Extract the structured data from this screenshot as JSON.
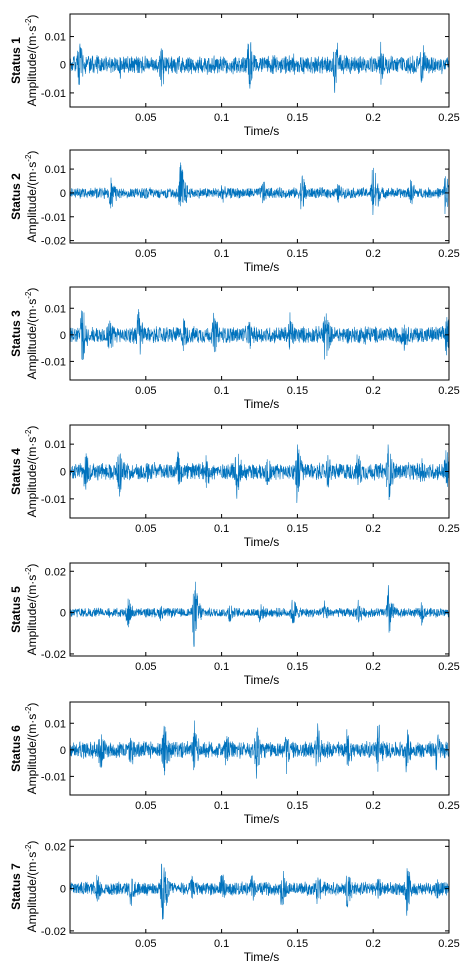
{
  "chart_data": [
    {
      "type": "line",
      "status_label": "Status 1",
      "ylabel": "Amplitude/(m·s",
      "ylabel_exp": "-2",
      "ylabel_close": ")",
      "xlabel": "Time/s",
      "xlim": [
        0,
        0.25
      ],
      "ylim": [
        -0.015,
        0.018
      ],
      "xticks": [
        0.05,
        0.1,
        0.15,
        0.2,
        0.25
      ],
      "xtick_labels": [
        "0.05",
        "0.1",
        "0.15",
        "0.2",
        "0.25"
      ],
      "yticks": [
        0.01,
        0,
        -0.01
      ],
      "ytick_labels": [
        "0.01",
        "0",
        "-0.01"
      ],
      "series": [
        {
          "color": "#0072BD",
          "noise": 0.0035,
          "bursts": [
            {
              "t": 0.006,
              "a": 0.012
            },
            {
              "t": 0.033,
              "a": 0.006
            },
            {
              "t": 0.06,
              "a": 0.013
            },
            {
              "t": 0.09,
              "a": 0.007
            },
            {
              "t": 0.118,
              "a": 0.014
            },
            {
              "t": 0.147,
              "a": 0.006
            },
            {
              "t": 0.175,
              "a": 0.014
            },
            {
              "t": 0.205,
              "a": 0.009
            },
            {
              "t": 0.232,
              "a": 0.011
            }
          ]
        }
      ]
    },
    {
      "type": "line",
      "status_label": "Status 2",
      "ylabel": "Amplitude/(m·s",
      "ylabel_exp": "-2",
      "ylabel_close": ")",
      "xlabel": "Time/s",
      "xlim": [
        0,
        0.25
      ],
      "ylim": [
        -0.021,
        0.018
      ],
      "xticks": [
        0.05,
        0.1,
        0.15,
        0.2,
        0.25
      ],
      "xtick_labels": [
        "0.05",
        "0.1",
        "0.15",
        "0.2",
        "0.25"
      ],
      "yticks": [
        0.01,
        0,
        -0.01,
        -0.02
      ],
      "ytick_labels": [
        "0.01",
        "0",
        "-0.01",
        "-0.02"
      ],
      "series": [
        {
          "color": "#0072BD",
          "noise": 0.0025,
          "bursts": [
            {
              "t": 0.027,
              "a": 0.011
            },
            {
              "t": 0.05,
              "a": 0.005
            },
            {
              "t": 0.073,
              "a": 0.019
            },
            {
              "t": 0.1,
              "a": 0.006
            },
            {
              "t": 0.127,
              "a": 0.008
            },
            {
              "t": 0.153,
              "a": 0.012
            },
            {
              "t": 0.177,
              "a": 0.006
            },
            {
              "t": 0.2,
              "a": 0.019
            },
            {
              "t": 0.225,
              "a": 0.008
            },
            {
              "t": 0.248,
              "a": 0.015
            }
          ]
        }
      ]
    },
    {
      "type": "line",
      "status_label": "Status 3",
      "ylabel": "Amplitude/(m·s",
      "ylabel_exp": "-2",
      "ylabel_close": ")",
      "xlabel": "Time/s",
      "xlim": [
        0,
        0.25
      ],
      "ylim": [
        -0.017,
        0.018
      ],
      "xticks": [
        0.05,
        0.1,
        0.15,
        0.2,
        0.25
      ],
      "xtick_labels": [
        "0.05",
        "0.1",
        "0.15",
        "0.2",
        "0.25"
      ],
      "yticks": [
        0.01,
        0,
        -0.01
      ],
      "ytick_labels": [
        "0.01",
        "0",
        "-0.01"
      ],
      "series": [
        {
          "color": "#0072BD",
          "noise": 0.0035,
          "bursts": [
            {
              "t": 0.008,
              "a": 0.016
            },
            {
              "t": 0.026,
              "a": 0.011
            },
            {
              "t": 0.045,
              "a": 0.015
            },
            {
              "t": 0.075,
              "a": 0.009
            },
            {
              "t": 0.095,
              "a": 0.012
            },
            {
              "t": 0.118,
              "a": 0.008
            },
            {
              "t": 0.145,
              "a": 0.011
            },
            {
              "t": 0.168,
              "a": 0.016
            },
            {
              "t": 0.195,
              "a": 0.007
            },
            {
              "t": 0.22,
              "a": 0.009
            },
            {
              "t": 0.248,
              "a": 0.013
            }
          ]
        }
      ]
    },
    {
      "type": "line",
      "status_label": "Status 4",
      "ylabel": "Amplitude/(m·s",
      "ylabel_exp": "-2",
      "ylabel_close": ")",
      "xlabel": "Time/s",
      "xlim": [
        0,
        0.25
      ],
      "ylim": [
        -0.017,
        0.017
      ],
      "xticks": [
        0.05,
        0.1,
        0.15,
        0.2,
        0.25
      ],
      "xtick_labels": [
        "0.05",
        "0.1",
        "0.15",
        "0.2",
        "0.25"
      ],
      "yticks": [
        0.01,
        0,
        -0.01
      ],
      "ytick_labels": [
        "0.01",
        "0",
        "-0.01"
      ],
      "series": [
        {
          "color": "#0072BD",
          "noise": 0.0035,
          "bursts": [
            {
              "t": 0.01,
              "a": 0.011
            },
            {
              "t": 0.032,
              "a": 0.015
            },
            {
              "t": 0.05,
              "a": 0.008
            },
            {
              "t": 0.071,
              "a": 0.011
            },
            {
              "t": 0.09,
              "a": 0.009
            },
            {
              "t": 0.11,
              "a": 0.015
            },
            {
              "t": 0.13,
              "a": 0.009
            },
            {
              "t": 0.15,
              "a": 0.015
            },
            {
              "t": 0.17,
              "a": 0.009
            },
            {
              "t": 0.19,
              "a": 0.01
            },
            {
              "t": 0.21,
              "a": 0.015
            },
            {
              "t": 0.232,
              "a": 0.008
            },
            {
              "t": 0.248,
              "a": 0.012
            }
          ]
        }
      ]
    },
    {
      "type": "line",
      "status_label": "Status 5",
      "ylabel": "Amplitude/(m·s",
      "ylabel_exp": "-2",
      "ylabel_close": ")",
      "xlabel": "Time/s",
      "xlim": [
        0,
        0.25
      ],
      "ylim": [
        -0.021,
        0.024
      ],
      "xticks": [
        0.05,
        0.1,
        0.15,
        0.2,
        0.25
      ],
      "xtick_labels": [
        "0.05",
        "0.1",
        "0.15",
        "0.2",
        "0.25"
      ],
      "yticks": [
        0.02,
        0,
        -0.02
      ],
      "ytick_labels": [
        "0.02",
        "0",
        "-0.02"
      ],
      "series": [
        {
          "color": "#0072BD",
          "noise": 0.0025,
          "bursts": [
            {
              "t": 0.038,
              "a": 0.011
            },
            {
              "t": 0.06,
              "a": 0.006
            },
            {
              "t": 0.082,
              "a": 0.022
            },
            {
              "t": 0.105,
              "a": 0.008
            },
            {
              "t": 0.125,
              "a": 0.008
            },
            {
              "t": 0.147,
              "a": 0.011
            },
            {
              "t": 0.168,
              "a": 0.007
            },
            {
              "t": 0.19,
              "a": 0.009
            },
            {
              "t": 0.21,
              "a": 0.017
            },
            {
              "t": 0.232,
              "a": 0.007
            }
          ]
        }
      ]
    },
    {
      "type": "line",
      "status_label": "Status 6",
      "ylabel": "Amplitude/(m·s",
      "ylabel_exp": "-2",
      "ylabel_close": ")",
      "xlabel": "Time/s",
      "xlim": [
        0,
        0.25
      ],
      "ylim": [
        -0.017,
        0.018
      ],
      "xticks": [
        0.05,
        0.1,
        0.15,
        0.2,
        0.25
      ],
      "xtick_labels": [
        "0.05",
        "0.1",
        "0.15",
        "0.2",
        "0.25"
      ],
      "yticks": [
        0.01,
        0,
        -0.01
      ],
      "ytick_labels": [
        "0.01",
        "0",
        "-0.01"
      ],
      "series": [
        {
          "color": "#0072BD",
          "noise": 0.0035,
          "bursts": [
            {
              "t": 0.02,
              "a": 0.013
            },
            {
              "t": 0.04,
              "a": 0.01
            },
            {
              "t": 0.062,
              "a": 0.016
            },
            {
              "t": 0.082,
              "a": 0.013
            },
            {
              "t": 0.103,
              "a": 0.01
            },
            {
              "t": 0.123,
              "a": 0.016
            },
            {
              "t": 0.143,
              "a": 0.01
            },
            {
              "t": 0.163,
              "a": 0.012
            },
            {
              "t": 0.183,
              "a": 0.011
            },
            {
              "t": 0.203,
              "a": 0.016
            },
            {
              "t": 0.222,
              "a": 0.011
            },
            {
              "t": 0.242,
              "a": 0.012
            }
          ]
        }
      ]
    },
    {
      "type": "line",
      "status_label": "Status 7",
      "ylabel": "Amplitude/(m·s",
      "ylabel_exp": "-2",
      "ylabel_close": ")",
      "xlabel": "Time/s",
      "xlim": [
        0,
        0.25
      ],
      "ylim": [
        -0.021,
        0.023
      ],
      "xticks": [
        0.05,
        0.1,
        0.15,
        0.2,
        0.25
      ],
      "xtick_labels": [
        "0.05",
        "0.1",
        "0.15",
        "0.2",
        "0.25"
      ],
      "yticks": [
        0.02,
        0,
        -0.02
      ],
      "ytick_labels": [
        "0.02",
        "0",
        "-0.02"
      ],
      "series": [
        {
          "color": "#0072BD",
          "noise": 0.0035,
          "bursts": [
            {
              "t": 0.018,
              "a": 0.01
            },
            {
              "t": 0.04,
              "a": 0.012
            },
            {
              "t": 0.061,
              "a": 0.021
            },
            {
              "t": 0.08,
              "a": 0.008
            },
            {
              "t": 0.1,
              "a": 0.012
            },
            {
              "t": 0.12,
              "a": 0.009
            },
            {
              "t": 0.14,
              "a": 0.015
            },
            {
              "t": 0.163,
              "a": 0.011
            },
            {
              "t": 0.183,
              "a": 0.015
            },
            {
              "t": 0.203,
              "a": 0.009
            },
            {
              "t": 0.222,
              "a": 0.016
            },
            {
              "t": 0.242,
              "a": 0.008
            }
          ]
        }
      ]
    }
  ]
}
